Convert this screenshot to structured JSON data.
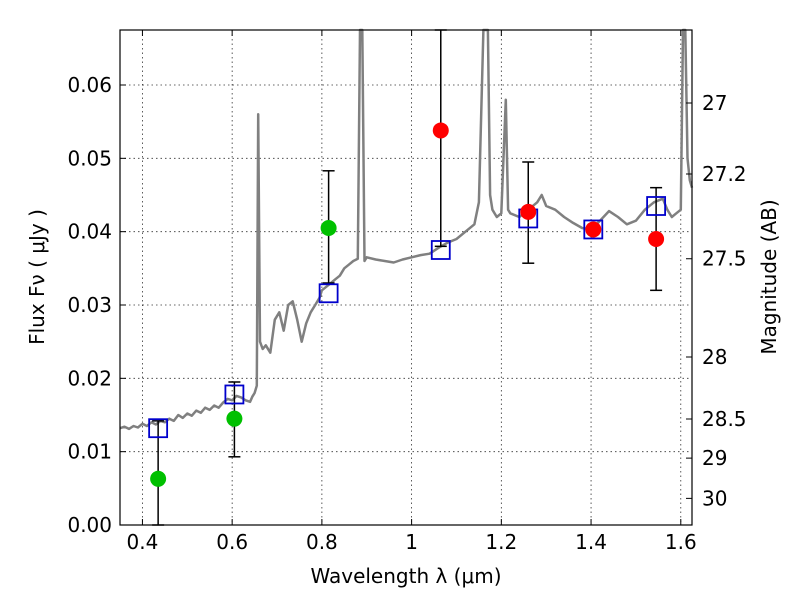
{
  "chart_data": {
    "type": "scatter",
    "xlabel": "Wavelength  λ (μm)",
    "ylabel": "Flux  Fν  ( μJy )",
    "y2label": "Magnitude (AB)",
    "xlim": [
      0.35,
      1.625
    ],
    "ylim": [
      0.0,
      0.0675
    ],
    "x_ticks": [
      0.4,
      0.6,
      0.8,
      1.0,
      1.2,
      1.4,
      1.6
    ],
    "x_tick_labels": [
      "0.4",
      "0.6",
      "0.8",
      "1",
      "1.2",
      "1.4",
      "1.6"
    ],
    "y_ticks": [
      0.0,
      0.01,
      0.02,
      0.03,
      0.04,
      0.05,
      0.06
    ],
    "y_tick_labels": [
      "0.00",
      "0.01",
      "0.02",
      "0.03",
      "0.04",
      "0.05",
      "0.06"
    ],
    "y2_ticks": [
      {
        "mag": 27,
        "label": "27"
      },
      {
        "mag": 27.2,
        "label": "27.2"
      },
      {
        "mag": 27.5,
        "label": "27.5"
      },
      {
        "mag": 28,
        "label": "28"
      },
      {
        "mag": 28.5,
        "label": "28.5"
      },
      {
        "mag": 29,
        "label": "29"
      },
      {
        "mag": 30,
        "label": "30"
      }
    ],
    "grid": true,
    "series": [
      {
        "kind": "spectrum",
        "color": "#808080",
        "points": [
          [
            0.35,
            0.0132
          ],
          [
            0.36,
            0.0134
          ],
          [
            0.37,
            0.0131
          ],
          [
            0.38,
            0.0135
          ],
          [
            0.39,
            0.0133
          ],
          [
            0.4,
            0.0138
          ],
          [
            0.41,
            0.0135
          ],
          [
            0.42,
            0.014
          ],
          [
            0.43,
            0.0137
          ],
          [
            0.44,
            0.0142
          ],
          [
            0.45,
            0.014
          ],
          [
            0.46,
            0.0145
          ],
          [
            0.47,
            0.0142
          ],
          [
            0.48,
            0.015
          ],
          [
            0.49,
            0.0146
          ],
          [
            0.5,
            0.0152
          ],
          [
            0.51,
            0.0149
          ],
          [
            0.52,
            0.0156
          ],
          [
            0.53,
            0.0153
          ],
          [
            0.54,
            0.016
          ],
          [
            0.55,
            0.0157
          ],
          [
            0.56,
            0.0163
          ],
          [
            0.57,
            0.016
          ],
          [
            0.58,
            0.0167
          ],
          [
            0.59,
            0.0172
          ],
          [
            0.6,
            0.017
          ],
          [
            0.61,
            0.0176
          ],
          [
            0.62,
            0.0174
          ],
          [
            0.63,
            0.017
          ],
          [
            0.64,
            0.0168
          ],
          [
            0.645,
            0.0175
          ],
          [
            0.65,
            0.018
          ],
          [
            0.655,
            0.019
          ],
          [
            0.658,
            0.056
          ],
          [
            0.662,
            0.025
          ],
          [
            0.668,
            0.024
          ],
          [
            0.675,
            0.0245
          ],
          [
            0.685,
            0.0235
          ],
          [
            0.695,
            0.028
          ],
          [
            0.705,
            0.029
          ],
          [
            0.715,
            0.0265
          ],
          [
            0.725,
            0.03
          ],
          [
            0.735,
            0.0305
          ],
          [
            0.745,
            0.028
          ],
          [
            0.755,
            0.025
          ],
          [
            0.765,
            0.0275
          ],
          [
            0.775,
            0.029
          ],
          [
            0.785,
            0.03
          ],
          [
            0.795,
            0.031
          ],
          [
            0.8,
            0.032
          ],
          [
            0.81,
            0.0325
          ],
          [
            0.82,
            0.033
          ],
          [
            0.83,
            0.0335
          ],
          [
            0.84,
            0.034
          ],
          [
            0.85,
            0.035
          ],
          [
            0.86,
            0.0355
          ],
          [
            0.87,
            0.036
          ],
          [
            0.88,
            0.0363
          ],
          [
            0.885,
            0.0675
          ],
          [
            0.89,
            0.0675
          ],
          [
            0.895,
            0.036
          ],
          [
            0.9,
            0.0365
          ],
          [
            0.92,
            0.0362
          ],
          [
            0.94,
            0.036
          ],
          [
            0.96,
            0.0358
          ],
          [
            0.98,
            0.0362
          ],
          [
            1.0,
            0.0365
          ],
          [
            1.02,
            0.0368
          ],
          [
            1.04,
            0.037
          ],
          [
            1.06,
            0.0378
          ],
          [
            1.08,
            0.0385
          ],
          [
            1.1,
            0.039
          ],
          [
            1.12,
            0.04
          ],
          [
            1.14,
            0.041
          ],
          [
            1.15,
            0.044
          ],
          [
            1.16,
            0.0675
          ],
          [
            1.17,
            0.0675
          ],
          [
            1.175,
            0.045
          ],
          [
            1.18,
            0.043
          ],
          [
            1.19,
            0.042
          ],
          [
            1.2,
            0.0425
          ],
          [
            1.21,
            0.058
          ],
          [
            1.215,
            0.043
          ],
          [
            1.22,
            0.0425
          ],
          [
            1.24,
            0.042
          ],
          [
            1.26,
            0.043
          ],
          [
            1.28,
            0.044
          ],
          [
            1.29,
            0.045
          ],
          [
            1.3,
            0.0435
          ],
          [
            1.32,
            0.043
          ],
          [
            1.34,
            0.042
          ],
          [
            1.36,
            0.0412
          ],
          [
            1.38,
            0.0405
          ],
          [
            1.4,
            0.0403
          ],
          [
            1.42,
            0.0415
          ],
          [
            1.44,
            0.0428
          ],
          [
            1.46,
            0.042
          ],
          [
            1.48,
            0.041
          ],
          [
            1.5,
            0.0415
          ],
          [
            1.52,
            0.043
          ],
          [
            1.54,
            0.044
          ],
          [
            1.56,
            0.0445
          ],
          [
            1.57,
            0.043
          ],
          [
            1.58,
            0.042
          ],
          [
            1.59,
            0.0425
          ],
          [
            1.6,
            0.043
          ],
          [
            1.605,
            0.0675
          ],
          [
            1.61,
            0.0675
          ],
          [
            1.615,
            0.05
          ],
          [
            1.62,
            0.047
          ],
          [
            1.625,
            0.046
          ]
        ]
      },
      {
        "kind": "model-squares",
        "color": "#0000cc",
        "points": [
          [
            0.435,
            0.0132
          ],
          [
            0.605,
            0.0178
          ],
          [
            0.815,
            0.0316
          ],
          [
            1.065,
            0.0375
          ],
          [
            1.26,
            0.0418
          ],
          [
            1.405,
            0.0403
          ],
          [
            1.545,
            0.0435
          ]
        ]
      },
      {
        "kind": "obs-green",
        "color": "#00c000",
        "points": [
          {
            "x": 0.435,
            "y": 0.0063,
            "low": 0.0,
            "high": 0.0142
          },
          {
            "x": 0.605,
            "y": 0.0145,
            "low": 0.0093,
            "high": 0.0195
          },
          {
            "x": 0.815,
            "y": 0.0405,
            "low": 0.033,
            "high": 0.0483
          }
        ]
      },
      {
        "kind": "obs-red",
        "color": "#ff0000",
        "points": [
          {
            "x": 1.065,
            "y": 0.0538,
            "low": 0.038,
            "high": 0.0675
          },
          {
            "x": 1.26,
            "y": 0.0427,
            "low": 0.0357,
            "high": 0.0495
          },
          {
            "x": 1.405,
            "y": 0.0403,
            "low": null,
            "high": null
          },
          {
            "x": 1.545,
            "y": 0.039,
            "low": 0.032,
            "high": 0.046
          }
        ]
      }
    ]
  }
}
